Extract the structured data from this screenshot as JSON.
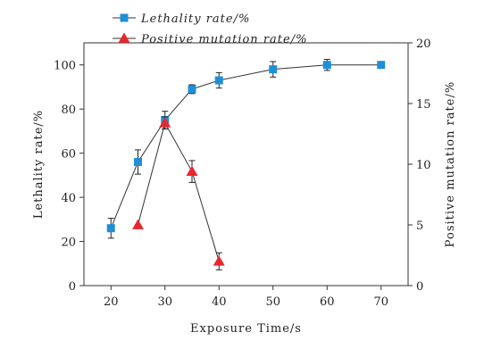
{
  "chart_data": {
    "type": "line",
    "xlabel": "Exposure Time/s",
    "ylabel": "Lethality rate/%",
    "y2label": "Positive mutation rate/%",
    "xlim": [
      15,
      75
    ],
    "ylim": [
      0,
      110
    ],
    "y2lim": [
      0,
      20
    ],
    "x_ticks": [
      20,
      30,
      40,
      50,
      60,
      70
    ],
    "y_ticks": [
      0,
      20,
      40,
      60,
      80,
      100
    ],
    "y2_ticks": [
      0,
      5,
      10,
      15,
      20
    ],
    "grid": false,
    "legend_position": "top-left",
    "series": [
      {
        "name": "Lethality rate/%",
        "axis": "left",
        "marker": "square",
        "color": "#1f8fd6",
        "x": [
          20,
          25,
          30,
          35,
          40,
          50,
          60,
          70
        ],
        "y": [
          26,
          56,
          75,
          89,
          93,
          98,
          100,
          100
        ],
        "error": [
          4.5,
          5.5,
          4,
          2,
          3.5,
          3.5,
          2.5,
          0
        ]
      },
      {
        "name": "Positive mutation rate/%",
        "axis": "right",
        "marker": "triangle",
        "color": "#e8272f",
        "x": [
          25,
          30,
          35,
          40
        ],
        "y": [
          5,
          13.4,
          9.4,
          2
        ],
        "error": [
          0,
          0.5,
          0.9,
          0.7
        ]
      }
    ]
  }
}
